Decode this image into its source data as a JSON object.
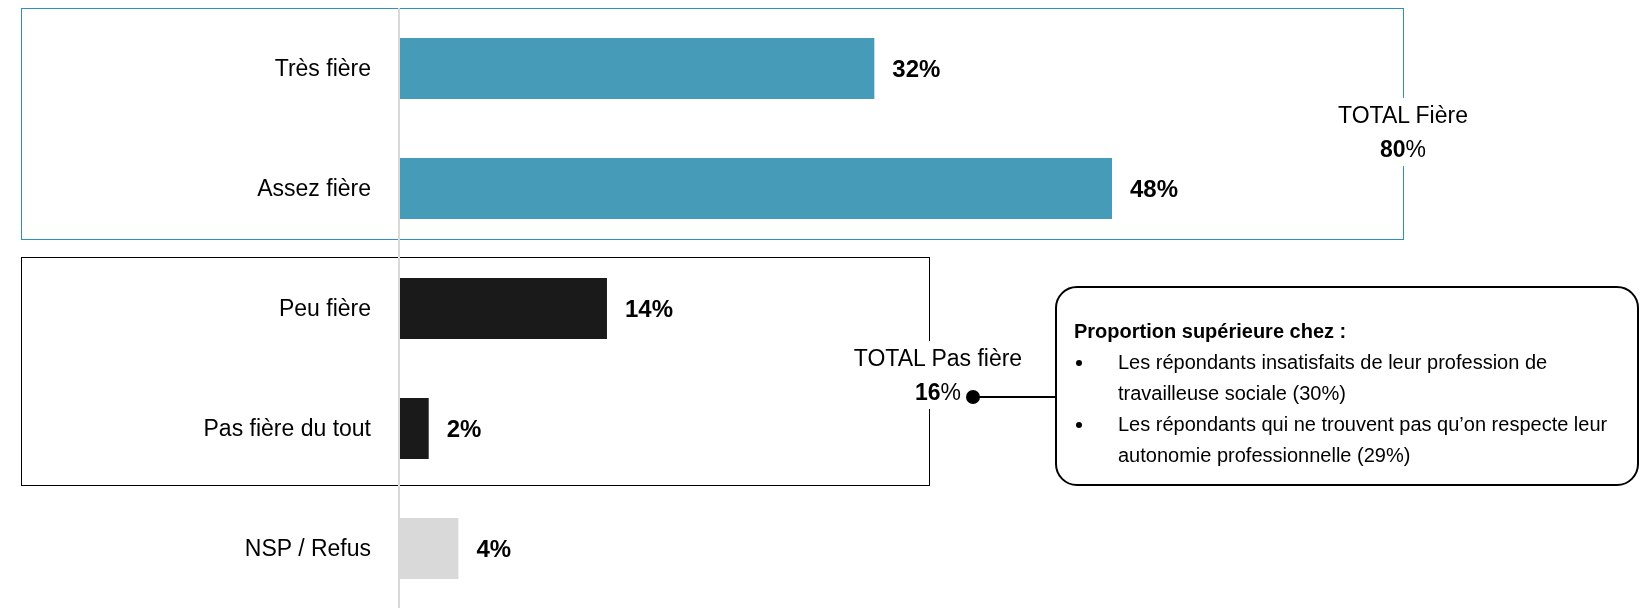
{
  "chart_data": {
    "type": "bar",
    "orientation": "horizontal",
    "categories": [
      "Très fière",
      "Assez fière",
      "Peu fière",
      "Pas fière du tout",
      "NSP / Refus"
    ],
    "values": [
      32,
      48,
      14,
      2,
      4
    ],
    "colors": [
      "#459bb8",
      "#459bb8",
      "#1a1a1a",
      "#1a1a1a",
      "#d9d9d9"
    ],
    "value_labels": [
      "32%",
      "48%",
      "14%",
      "2%",
      "4%"
    ],
    "annotations": [
      "TOTAL Fière\n80%",
      "TOTAL Pas fière\n16%",
      "Proportion supérieure chez :",
      "Les répondants insatisfaits de leur profession de travailleuse sociale (30%)",
      "Les répondants qui ne trouvent pas qu’on respecte leur autonomie professionnelle (29%)"
    ],
    "grid": false
  }
}
